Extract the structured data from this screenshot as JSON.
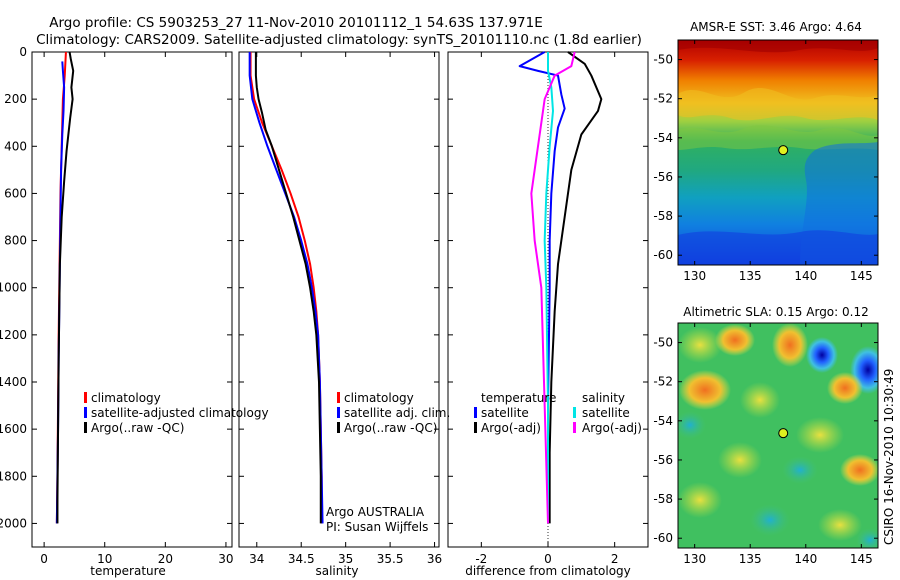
{
  "figure": {
    "title_line1": "Argo profile: CS 5903253_27 11-Nov-2010 20101112_1 54.63S 137.971E",
    "title_line2": "Climatology: CARS2009. Satellite-adjusted climatology: synTS_20101110.nc (1.8d earlier)",
    "side_label": "CSIRO 16-Nov-2010 10:30:49",
    "colors": {
      "red": "#ff0000",
      "blue": "#0000ff",
      "black": "#000000",
      "cyan": "#00e5e5",
      "magenta": "#ff00ff"
    }
  },
  "chart_data": [
    {
      "type": "line",
      "id": "temperature",
      "xlabel": "temperature",
      "ylabel": "",
      "xlim": [
        -2,
        31
      ],
      "ylim": [
        2100,
        0
      ],
      "xticks": [
        "0",
        "10",
        "20",
        "30"
      ],
      "yticks": [
        "0",
        "200",
        "400",
        "600",
        "800",
        "1000",
        "1200",
        "1400",
        "1600",
        "1800",
        "2000"
      ],
      "legend": {
        "position": "bottom-center",
        "entries": [
          "climatology",
          "satellite-adjusted climatology",
          "Argo(..raw -QC)"
        ]
      },
      "series": [
        {
          "name": "climatology",
          "color": "red",
          "points": [
            [
              3.6,
              0
            ],
            [
              3.5,
              50
            ],
            [
              3.4,
              100
            ],
            [
              3.1,
              200
            ],
            [
              3.0,
              300
            ],
            [
              2.9,
              400
            ],
            [
              2.7,
              600
            ],
            [
              2.6,
              800
            ],
            [
              2.5,
              1000
            ],
            [
              2.4,
              1200
            ],
            [
              2.3,
              1500
            ],
            [
              2.2,
              1800
            ],
            [
              2.1,
              2000
            ]
          ]
        },
        {
          "name": "satellite-adjusted climatology",
          "color": "blue",
          "points": [
            [
              3.0,
              40
            ],
            [
              3.1,
              80
            ],
            [
              3.3,
              150
            ],
            [
              3.2,
              250
            ],
            [
              3.0,
              350
            ],
            [
              2.8,
              500
            ],
            [
              2.7,
              700
            ],
            [
              2.6,
              900
            ],
            [
              2.5,
              1100
            ],
            [
              2.4,
              1300
            ],
            [
              2.3,
              1600
            ],
            [
              2.2,
              1800
            ],
            [
              2.1,
              2000
            ]
          ]
        },
        {
          "name": "Argo(..raw -QC)",
          "color": "black",
          "points": [
            [
              4.2,
              0
            ],
            [
              4.4,
              30
            ],
            [
              4.8,
              80
            ],
            [
              4.5,
              150
            ],
            [
              4.7,
              200
            ],
            [
              4.3,
              280
            ],
            [
              4.0,
              350
            ],
            [
              3.7,
              420
            ],
            [
              3.3,
              550
            ],
            [
              2.9,
              700
            ],
            [
              2.6,
              900
            ],
            [
              2.5,
              1100
            ],
            [
              2.4,
              1300
            ],
            [
              2.3,
              1600
            ],
            [
              2.2,
              1900
            ],
            [
              2.2,
              2000
            ]
          ]
        }
      ]
    },
    {
      "type": "line",
      "id": "salinity",
      "xlabel": "salinity",
      "ylabel": "",
      "xlim": [
        33.8,
        36.05
      ],
      "ylim": [
        2100,
        0
      ],
      "xticks": [
        "34",
        "34.5",
        "35",
        "35.5",
        "36"
      ],
      "legend": {
        "position": "bottom-center",
        "entries": [
          "climatology",
          "satellite adj. clim.",
          "Argo(..raw -QC)"
        ]
      },
      "annotations": [
        "Argo AUSTRALIA",
        "PI: Susan Wijffels"
      ],
      "series": [
        {
          "name": "climatology",
          "color": "red",
          "points": [
            [
              33.93,
              0
            ],
            [
              33.93,
              100
            ],
            [
              33.97,
              200
            ],
            [
              34.06,
              300
            ],
            [
              34.17,
              400
            ],
            [
              34.28,
              500
            ],
            [
              34.38,
              600
            ],
            [
              34.47,
              700
            ],
            [
              34.54,
              800
            ],
            [
              34.6,
              900
            ],
            [
              34.64,
              1000
            ],
            [
              34.67,
              1100
            ],
            [
              34.69,
              1200
            ],
            [
              34.71,
              1400
            ],
            [
              34.72,
              1600
            ],
            [
              34.73,
              1800
            ],
            [
              34.73,
              2000
            ]
          ]
        },
        {
          "name": "satellite adj. clim.",
          "color": "blue",
          "points": [
            [
              33.92,
              0
            ],
            [
              33.92,
              100
            ],
            [
              33.95,
              200
            ],
            [
              34.03,
              300
            ],
            [
              34.12,
              400
            ],
            [
              34.22,
              500
            ],
            [
              34.32,
              600
            ],
            [
              34.42,
              700
            ],
            [
              34.5,
              800
            ],
            [
              34.57,
              900
            ],
            [
              34.62,
              1000
            ],
            [
              34.66,
              1100
            ],
            [
              34.69,
              1200
            ],
            [
              34.71,
              1400
            ],
            [
              34.72,
              1600
            ],
            [
              34.73,
              1800
            ],
            [
              34.74,
              2000
            ]
          ]
        },
        {
          "name": "Argo(..raw -QC)",
          "color": "black",
          "points": [
            [
              33.99,
              0
            ],
            [
              33.99,
              50
            ],
            [
              33.99,
              100
            ],
            [
              34.0,
              150
            ],
            [
              34.02,
              200
            ],
            [
              34.06,
              260
            ],
            [
              34.1,
              330
            ],
            [
              34.17,
              400
            ],
            [
              34.25,
              500
            ],
            [
              34.33,
              600
            ],
            [
              34.41,
              700
            ],
            [
              34.48,
              800
            ],
            [
              34.55,
              900
            ],
            [
              34.6,
              1000
            ],
            [
              34.64,
              1100
            ],
            [
              34.67,
              1200
            ],
            [
              34.7,
              1400
            ],
            [
              34.71,
              1600
            ],
            [
              34.72,
              1800
            ],
            [
              34.72,
              2000
            ]
          ]
        }
      ]
    },
    {
      "type": "line",
      "id": "difference",
      "xlabel": "difference from climatology",
      "ylabel": "",
      "xlim": [
        -3,
        3
      ],
      "ylim": [
        2100,
        0
      ],
      "xticks": [
        "-2",
        "0",
        "2"
      ],
      "legend": {
        "position": "bottom-center",
        "col1_header": "temperature",
        "col2_header": "salinity",
        "col1_entries": [
          "satellite",
          "Argo(-adj)"
        ],
        "col2_entries": [
          "satellite",
          "Argo(-adj)"
        ]
      },
      "series": [
        {
          "name": "temperature satellite",
          "color": "blue",
          "points": [
            [
              -0.1,
              0
            ],
            [
              -0.85,
              60
            ],
            [
              -0.3,
              80
            ],
            [
              0.3,
              100
            ],
            [
              0.4,
              180
            ],
            [
              0.5,
              240
            ],
            [
              0.3,
              320
            ],
            [
              0.2,
              420
            ],
            [
              0.1,
              600
            ],
            [
              0.05,
              800
            ],
            [
              0.05,
              1000
            ],
            [
              0.0,
              1500
            ],
            [
              0.0,
              2000
            ]
          ]
        },
        {
          "name": "temperature Argo(-adj)",
          "color": "black",
          "points": [
            [
              0.6,
              0
            ],
            [
              1.1,
              50
            ],
            [
              1.3,
              100
            ],
            [
              1.6,
              200
            ],
            [
              1.5,
              250
            ],
            [
              1.0,
              350
            ],
            [
              0.7,
              500
            ],
            [
              0.5,
              700
            ],
            [
              0.3,
              900
            ],
            [
              0.2,
              1100
            ],
            [
              0.1,
              1400
            ],
            [
              0.05,
              1700
            ],
            [
              0.05,
              2000
            ]
          ]
        },
        {
          "name": "salinity satellite",
          "color": "cyan",
          "points": [
            [
              0.0,
              0
            ],
            [
              0.0,
              80
            ],
            [
              0.1,
              150
            ],
            [
              0.15,
              250
            ],
            [
              0.05,
              400
            ],
            [
              -0.05,
              600
            ],
            [
              -0.1,
              800
            ],
            [
              -0.05,
              1000
            ],
            [
              0.0,
              1500
            ],
            [
              0.0,
              2000
            ]
          ]
        },
        {
          "name": "salinity Argo(-adj)",
          "color": "magenta",
          "points": [
            [
              0.8,
              0
            ],
            [
              0.7,
              60
            ],
            [
              0.2,
              100
            ],
            [
              -0.1,
              200
            ],
            [
              -0.3,
              400
            ],
            [
              -0.5,
              600
            ],
            [
              -0.4,
              800
            ],
            [
              -0.2,
              1000
            ],
            [
              -0.1,
              1500
            ],
            [
              0.0,
              2000
            ]
          ]
        }
      ]
    },
    {
      "type": "heatmap",
      "id": "sst_map",
      "title": "AMSR-E SST: 3.46 Argo: 4.64",
      "xlim": [
        128.5,
        146.5
      ],
      "ylim": [
        -60.5,
        -49
      ],
      "xticks": [
        "130",
        "135",
        "140",
        "145"
      ],
      "yticks": [
        "-50",
        "-52",
        "-54",
        "-56",
        "-58",
        "-60"
      ],
      "marker": {
        "lon": 137.97,
        "lat": -54.63,
        "color": "#e0f020"
      }
    },
    {
      "type": "heatmap",
      "id": "sla_map",
      "title": "Altimetric SLA: 0.15 Argo: 0.12",
      "xlim": [
        128.5,
        146.5
      ],
      "ylim": [
        -60.5,
        -49
      ],
      "xticks": [
        "130",
        "135",
        "140",
        "145"
      ],
      "yticks": [
        "-50",
        "-52",
        "-54",
        "-56",
        "-58",
        "-60"
      ],
      "marker": {
        "lon": 137.97,
        "lat": -54.63,
        "color": "#e0f020"
      }
    }
  ]
}
